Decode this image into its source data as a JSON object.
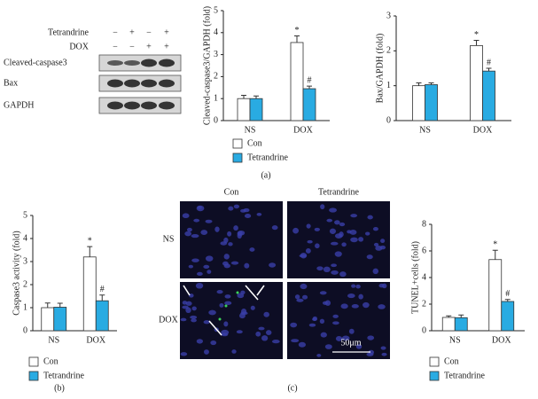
{
  "chart_data": [
    {
      "type": "bar",
      "ylabel": "Cleaved-caspase3/GAPDH (fold)",
      "categories": [
        "NS",
        "DOX"
      ],
      "series": [
        {
          "name": "Con",
          "color": "#ffffff",
          "values": [
            1.0,
            3.55
          ],
          "errors": [
            0.15,
            0.3
          ]
        },
        {
          "name": "Tetrandrine",
          "color": "#29abe2",
          "values": [
            1.0,
            1.45
          ],
          "errors": [
            0.12,
            0.12
          ]
        }
      ],
      "annotations": [
        "*",
        "#"
      ],
      "ylim": [
        0,
        5
      ],
      "yticks": [
        0,
        1,
        2,
        3,
        4,
        5
      ]
    },
    {
      "type": "bar",
      "ylabel": "Bax/GAPDH (fold)",
      "categories": [
        "NS",
        "DOX"
      ],
      "series": [
        {
          "color": "#ffffff",
          "values": [
            1.0,
            2.15
          ],
          "errors": [
            0.08,
            0.15
          ]
        },
        {
          "color": "#29abe2",
          "values": [
            1.03,
            1.42
          ],
          "errors": [
            0.05,
            0.08
          ]
        }
      ],
      "annotations": [
        "*",
        "#"
      ],
      "ylim": [
        0,
        3
      ],
      "yticks": [
        0,
        1,
        2,
        3
      ]
    },
    {
      "type": "bar",
      "ylabel": "Caspase3 activity (fold)",
      "categories": [
        "NS",
        "DOX"
      ],
      "series": [
        {
          "name": "Con",
          "color": "#ffffff",
          "values": [
            1.0,
            3.2
          ],
          "errors": [
            0.2,
            0.45
          ]
        },
        {
          "name": "Tetrandrine",
          "color": "#29abe2",
          "values": [
            1.02,
            1.3
          ],
          "errors": [
            0.17,
            0.25
          ]
        }
      ],
      "annotations": [
        "*",
        "#"
      ],
      "ylim": [
        0,
        5
      ],
      "yticks": [
        0,
        1,
        2,
        3,
        4,
        5
      ]
    },
    {
      "type": "bar",
      "ylabel": "TUNEL+cells (fold)",
      "categories": [
        "NS",
        "DOX"
      ],
      "series": [
        {
          "name": "Con",
          "color": "#ffffff",
          "values": [
            1.0,
            5.35
          ],
          "errors": [
            0.12,
            0.7
          ]
        },
        {
          "name": "Tetrandrine",
          "color": "#29abe2",
          "values": [
            0.98,
            2.2
          ],
          "errors": [
            0.2,
            0.15
          ]
        }
      ],
      "annotations": [
        "*",
        "#"
      ],
      "ylim": [
        0,
        8
      ],
      "yticks": [
        0,
        2,
        4,
        6,
        8
      ]
    }
  ],
  "blot": {
    "conditions": [
      {
        "label": "Tetrandrine",
        "signs": [
          "−",
          "+",
          "−",
          "+"
        ]
      },
      {
        "label": "DOX",
        "signs": [
          "−",
          "−",
          "+",
          "+"
        ]
      }
    ],
    "bands": [
      "Cleaved-caspase3",
      "Bax",
      "GAPDH"
    ]
  },
  "micrograph": {
    "columns": [
      "Con",
      "Tetrandrine"
    ],
    "rows": [
      "NS",
      "DOX"
    ],
    "scale_bar": "50μm"
  },
  "panel_labels": [
    "(a)",
    "(b)",
    "(c)"
  ]
}
